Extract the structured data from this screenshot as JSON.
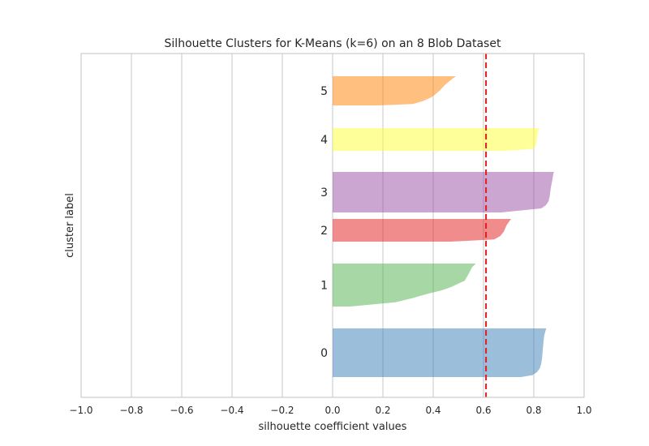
{
  "chart_data": {
    "type": "area",
    "title": "Silhouette Clusters for K-Means (k=6) on an 8 Blob Dataset",
    "xlabel": "silhouette coefficient values",
    "ylabel": "cluster label",
    "xlim": [
      -1.0,
      1.0
    ],
    "x_ticks": [
      "−1.0",
      "−0.8",
      "−0.6",
      "−0.4",
      "−0.2",
      "0.0",
      "0.2",
      "0.4",
      "0.6",
      "0.8",
      "1.0"
    ],
    "grid": true,
    "average_silhouette_score": 0.61,
    "average_line_color": "#e41a1c",
    "clusters": [
      {
        "label": "0",
        "color": "#377eb8",
        "max_coefficient": 0.85,
        "min_coefficient": 0.56
      },
      {
        "label": "1",
        "color": "#4daf4a",
        "max_coefficient": 0.57,
        "min_coefficient": 0.07
      },
      {
        "label": "2",
        "color": "#e41a1c",
        "max_coefficient": 0.71,
        "min_coefficient": 0.47
      },
      {
        "label": "3",
        "color": "#984ea3",
        "max_coefficient": 0.88,
        "min_coefficient": 0.67
      },
      {
        "label": "4",
        "color": "#ffff33",
        "max_coefficient": 0.82,
        "min_coefficient": 0.69
      },
      {
        "label": "5",
        "color": "#ff7f00",
        "max_coefficient": 0.49,
        "min_coefficient": 0.18
      }
    ]
  }
}
